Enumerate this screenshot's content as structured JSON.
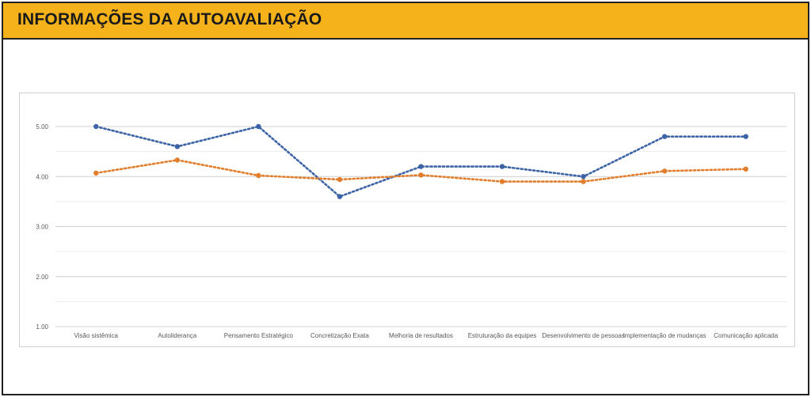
{
  "header": {
    "title": "INFORMAÇÕES DA AUTOAVALIAÇÃO"
  },
  "colors": {
    "header_bg": "#f6b21b",
    "series_1": "#3b63a6",
    "series_2": "#e27d2c",
    "gridline": "#d9d9d9"
  },
  "chart_data": {
    "type": "line",
    "title": "",
    "xlabel": "",
    "ylabel": "",
    "ylim": [
      1.0,
      5.0
    ],
    "yticks": [
      "1.00",
      "2.00",
      "3.00",
      "4.00",
      "5.00"
    ],
    "grid": true,
    "legend": "none",
    "line_style": "dotted",
    "categories": [
      "Visão sistêmica",
      "Autoliderança",
      "Pensamento Estratégico",
      "Concretização Exata",
      "Melhoria de resultados",
      "Estruturação da equipes",
      "Desenvolvimento de pessoas",
      "Implementação de mudanças",
      "Comunicação aplicada"
    ],
    "series": [
      {
        "color": "#3b63a6",
        "values": [
          5.0,
          4.6,
          5.0,
          3.6,
          4.2,
          4.2,
          4.0,
          4.8,
          4.8
        ]
      },
      {
        "color": "#e27d2c",
        "values": [
          4.07,
          4.33,
          4.02,
          3.94,
          4.03,
          3.9,
          3.9,
          4.11,
          4.15
        ]
      }
    ]
  }
}
